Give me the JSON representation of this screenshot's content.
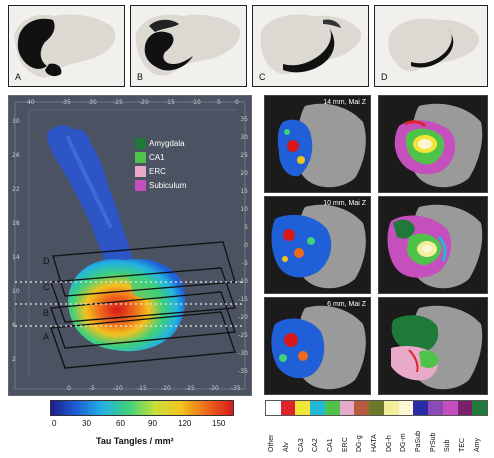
{
  "top_panels": [
    {
      "label": "A"
    },
    {
      "label": "B"
    },
    {
      "label": "C"
    },
    {
      "label": "D"
    }
  ],
  "view3d": {
    "top_ticks": [
      "40",
      "-35",
      "-30",
      "-25",
      "-20",
      "-15",
      "-10",
      "-5",
      "0"
    ],
    "left_ticks": [
      "30",
      "26",
      "22",
      "18",
      "14",
      "10",
      "6",
      "2"
    ],
    "right_ticks": [
      "35",
      "30",
      "25",
      "20",
      "15",
      "10",
      "5",
      "0",
      "-5",
      "-10",
      "-15",
      "-20",
      "-25",
      "-30",
      "-35"
    ],
    "bottom_ticks": [
      "0",
      "-5",
      "-10",
      "-15",
      "-20",
      "-25",
      "-30",
      "-35"
    ],
    "plane_labels": [
      "D",
      "C",
      "B",
      "A"
    ],
    "legend": [
      {
        "label": "Amygdala",
        "color": "#1f7a3a"
      },
      {
        "label": "CA1",
        "color": "#4fc24a"
      },
      {
        "label": "ERC",
        "color": "#e9a9c8"
      },
      {
        "label": "Subiculum",
        "color": "#c54fbd"
      }
    ]
  },
  "colorbar": {
    "ticks": [
      "0",
      "30",
      "60",
      "90",
      "120",
      "150"
    ],
    "label": "Tau Tangles / mm²",
    "colors": [
      "#1a1f8c",
      "#1f5fd8",
      "#23b3e0",
      "#3fd07a",
      "#c8e03a",
      "#f2c21f",
      "#ee6a1c",
      "#d81818"
    ]
  },
  "slices": [
    {
      "caption": "14 mm, Mai Z"
    },
    {
      "caption": "10 mm, Mai Z"
    },
    {
      "caption": "6 mm, Mai Z"
    }
  ],
  "region_legend": [
    {
      "label": "Other",
      "color": "#ffffff"
    },
    {
      "label": "Alv",
      "color": "#e0242b"
    },
    {
      "label": "CA3",
      "color": "#f3e63a"
    },
    {
      "label": "CA2",
      "color": "#23b8d8"
    },
    {
      "label": "CA1",
      "color": "#4fc24a"
    },
    {
      "label": "ERC",
      "color": "#e9a9c8"
    },
    {
      "label": "DG-g",
      "color": "#b55a3a"
    },
    {
      "label": "HATA",
      "color": "#6b7a2a"
    },
    {
      "label": "DG-h",
      "color": "#f2ef9a"
    },
    {
      "label": "DG-m",
      "color": "#fbf7d6"
    },
    {
      "label": "PaSub",
      "color": "#2a2aa8"
    },
    {
      "label": "PrSub",
      "color": "#8a4ab8"
    },
    {
      "label": "Sub",
      "color": "#c54fbd"
    },
    {
      "label": "TEC",
      "color": "#7a1f6a"
    },
    {
      "label": "Amy",
      "color": "#1f7a3a"
    }
  ]
}
